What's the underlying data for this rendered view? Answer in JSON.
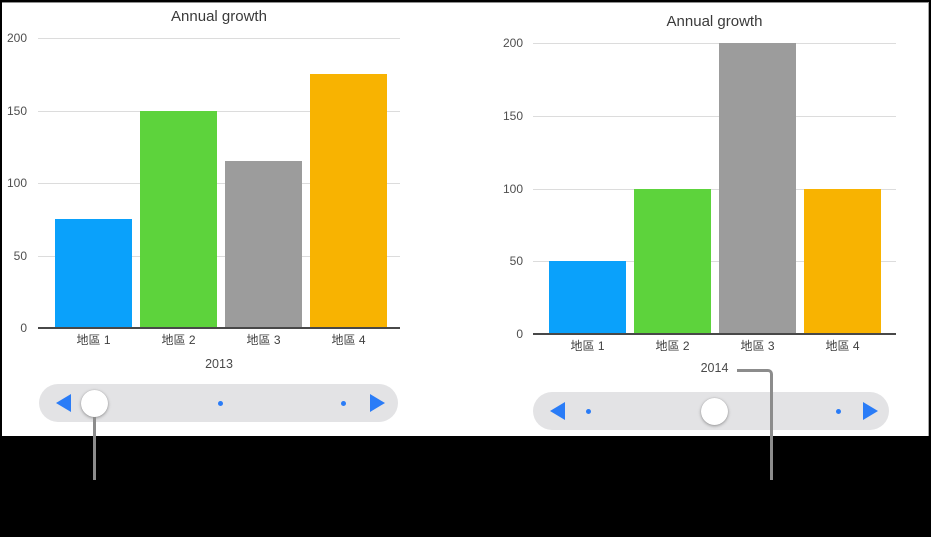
{
  "figure": {
    "panel_background": "#ffffff",
    "frame_background": "#000000",
    "accent_blue": "#2a7cf7",
    "callout_line_color": "#8c8c8c"
  },
  "chart_data": [
    {
      "type": "bar",
      "title": "Annual growth",
      "xlabel": "2013",
      "ylabel": "",
      "categories": [
        "地區 1",
        "地區 2",
        "地區 3",
        "地區 4"
      ],
      "values": [
        75,
        150,
        115,
        175
      ],
      "ylim": [
        0,
        200
      ],
      "y_ticks": [
        0,
        50,
        100,
        150,
        200
      ],
      "grid": "horizontal",
      "legend": "none",
      "bar_colors": [
        "#0aa1fb",
        "#5dd33c",
        "#9c9c9c",
        "#f8b301"
      ]
    },
    {
      "type": "bar",
      "title": "Annual growth",
      "xlabel": "2014",
      "ylabel": "",
      "categories": [
        "地區 1",
        "地區 2",
        "地區 3",
        "地區 4"
      ],
      "values": [
        50,
        100,
        200,
        100
      ],
      "ylim": [
        0,
        200
      ],
      "y_ticks": [
        0,
        50,
        100,
        150,
        200
      ],
      "grid": "horizontal",
      "legend": "none",
      "bar_colors": [
        "#0aa1fb",
        "#5dd33c",
        "#9c9c9c",
        "#f8b301"
      ]
    }
  ],
  "scrubbers": [
    {
      "previous_label": "previous chart",
      "next_label": "next chart",
      "handle_position": "left",
      "dot_count": 2
    },
    {
      "previous_label": "previous chart",
      "next_label": "next chart",
      "handle_position": "center",
      "dot_count": 2
    }
  ]
}
